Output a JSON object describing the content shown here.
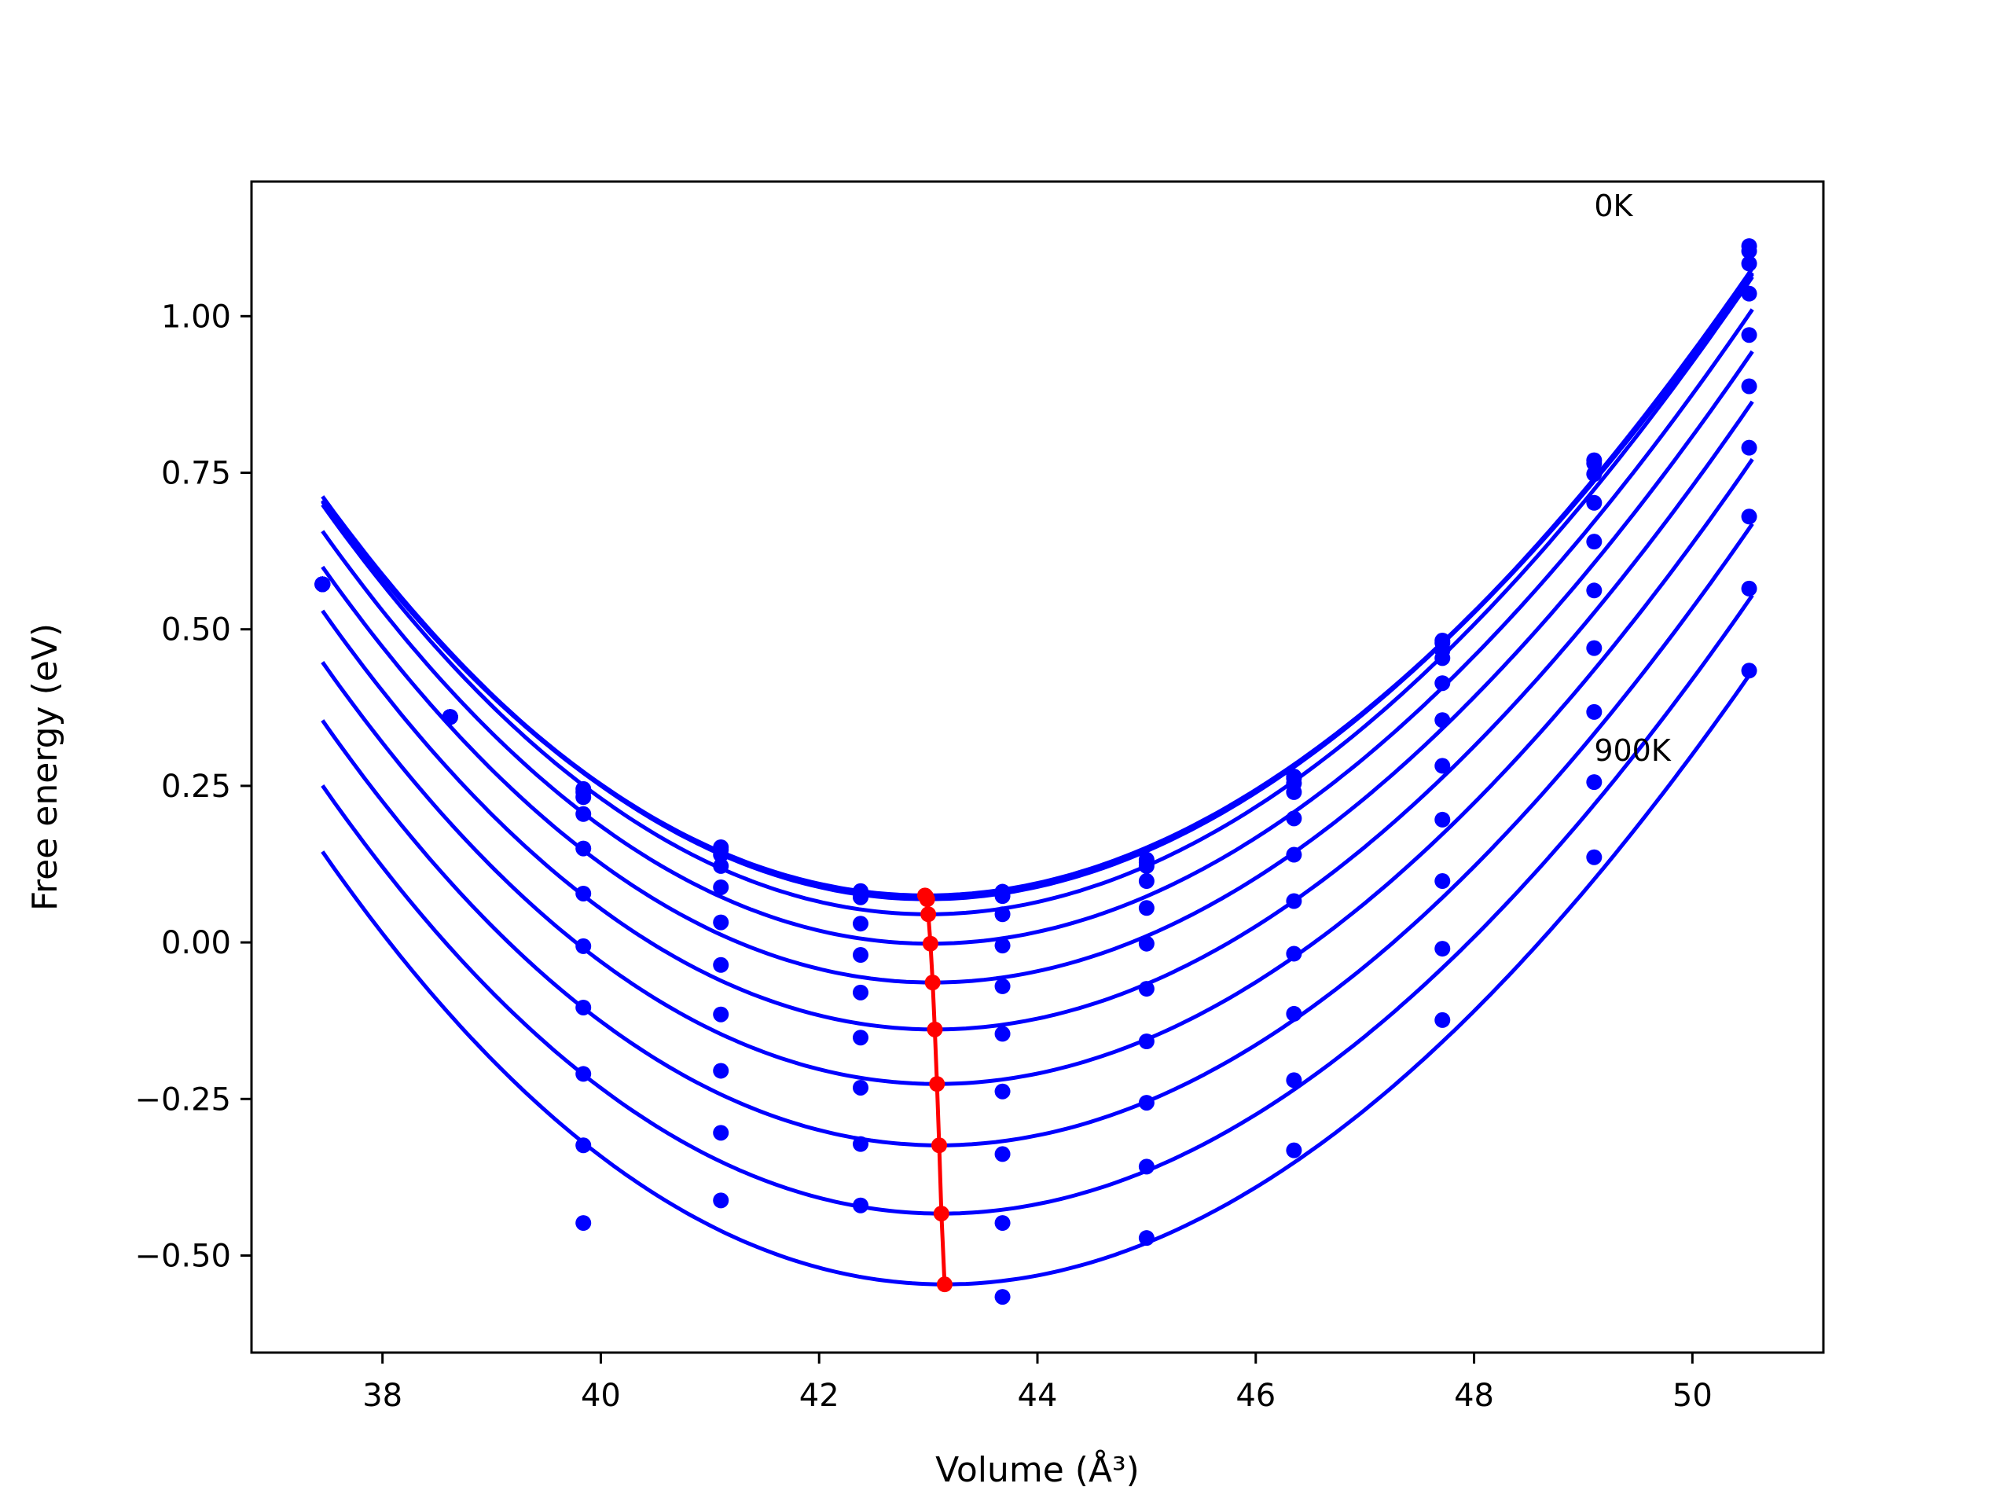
{
  "chart_data": {
    "type": "line",
    "xlabel": "Volume (Å³)",
    "ylabel": "Free energy (eV)",
    "xlim": [
      36.8,
      51.2
    ],
    "ylim": [
      -0.655,
      1.215
    ],
    "xticks": [
      38,
      40,
      42,
      44,
      46,
      48,
      50
    ],
    "xtick_labels": [
      "38",
      "40",
      "42",
      "44",
      "46",
      "48",
      "50"
    ],
    "yticks": [
      -0.5,
      -0.25,
      0.0,
      0.25,
      0.5,
      0.75,
      1.0
    ],
    "ytick_labels": [
      "−0.50",
      "−0.25",
      "0.00",
      "0.25",
      "0.50",
      "0.75",
      "1.00"
    ],
    "grid": false,
    "annotations": [
      {
        "text": "0K",
        "x": 49.1,
        "y": 1.16
      },
      {
        "text": "900K",
        "x": 49.1,
        "y": 0.29
      }
    ],
    "point_volumes": [
      37.45,
      38.62,
      39.84,
      41.1,
      42.38,
      43.68,
      45.0,
      46.35,
      47.71,
      49.1,
      50.52
    ],
    "series": [
      {
        "curve": {
          "v0": 42.98,
          "e0": 0.075,
          "k": 0.01925
        },
        "points": [
          0.572,
          0.36,
          0.245,
          0.152,
          0.082,
          0.081,
          0.132,
          0.265,
          0.482,
          0.77,
          1.112
        ]
      },
      {
        "curve": {
          "v0": 42.98,
          "e0": 0.073,
          "k": 0.01925
        },
        "points": [
          0.572,
          0.36,
          0.24,
          0.148,
          0.078,
          0.079,
          0.128,
          0.262,
          0.478,
          0.765,
          1.104
        ]
      },
      {
        "curve": {
          "v0": 42.99,
          "e0": 0.069,
          "k": 0.01955
        },
        "points": [
          0.572,
          0.36,
          0.232,
          0.14,
          0.072,
          0.074,
          0.122,
          0.254,
          0.466,
          0.748,
          1.084
        ]
      },
      {
        "curve": {
          "v0": 43.0,
          "e0": 0.045,
          "k": 0.0198
        },
        "points": [
          0.572,
          0.36,
          0.205,
          0.122,
          0.03,
          0.045,
          0.098,
          0.24,
          0.454,
          0.702,
          1.036
        ]
      },
      {
        "curve": {
          "v0": 43.02,
          "e0": -0.002,
          "k": 0.0198
        },
        "points": [
          0.572,
          0.36,
          0.15,
          0.088,
          -0.02,
          -0.005,
          0.055,
          0.198,
          0.414,
          0.64,
          0.97
        ]
      },
      {
        "curve": {
          "v0": 43.04,
          "e0": -0.064,
          "k": 0.0198
        },
        "points": [
          0.572,
          0.36,
          0.078,
          0.032,
          -0.08,
          -0.07,
          -0.002,
          0.14,
          0.355,
          0.562,
          0.888
        ]
      },
      {
        "curve": {
          "v0": 43.06,
          "e0": -0.139,
          "k": 0.0198
        },
        "points": [
          0.572,
          0.36,
          -0.006,
          -0.036,
          -0.152,
          -0.146,
          -0.074,
          0.066,
          0.282,
          0.47,
          0.79
        ]
      },
      {
        "curve": {
          "v0": 43.08,
          "e0": -0.226,
          "k": 0.0198
        },
        "points": [
          0.572,
          0.36,
          -0.104,
          -0.115,
          -0.232,
          -0.238,
          -0.158,
          -0.018,
          0.196,
          0.368,
          0.68
        ]
      },
      {
        "curve": {
          "v0": 43.1,
          "e0": -0.324,
          "k": 0.0198
        },
        "points": [
          0.572,
          0.36,
          -0.21,
          -0.205,
          -0.322,
          -0.338,
          -0.256,
          -0.114,
          0.098,
          0.256,
          0.565
        ]
      },
      {
        "curve": {
          "v0": 43.12,
          "e0": -0.433,
          "k": 0.0198
        },
        "points": [
          0.572,
          0.36,
          -0.324,
          -0.304,
          -0.42,
          -0.448,
          -0.358,
          -0.22,
          -0.01,
          0.136,
          0.434
        ]
      },
      {
        "curve": {
          "v0": 43.15,
          "e0": -0.546,
          "k": 0.0198
        },
        "points": [
          0.572,
          0.36,
          -0.448,
          -0.412,
          null,
          -0.566,
          -0.472,
          -0.332,
          -0.124,
          null,
          null
        ]
      }
    ],
    "minimum_line": {
      "x": [
        42.97,
        42.98,
        42.99,
        43.0,
        43.02,
        43.04,
        43.06,
        43.08,
        43.1,
        43.12,
        43.15
      ],
      "y": [
        0.075,
        0.073,
        0.069,
        0.045,
        -0.002,
        -0.064,
        -0.139,
        -0.226,
        -0.324,
        -0.433,
        -0.546
      ]
    },
    "colors": {
      "series": "#0000ff",
      "minimum": "#ff0000",
      "axes": "#000000"
    }
  }
}
